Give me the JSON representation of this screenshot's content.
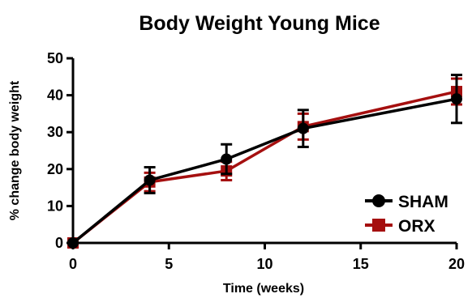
{
  "chart_data": {
    "type": "line",
    "title": "Body Weight Young Mice",
    "xlabel": "Time (weeks)",
    "ylabel": "% change body weight",
    "xlim": [
      0,
      20
    ],
    "ylim": [
      0,
      50
    ],
    "xticks": [
      0,
      5,
      10,
      15,
      20
    ],
    "yticks": [
      0,
      10,
      20,
      30,
      40,
      50
    ],
    "grid": false,
    "legend_position": "bottom-right",
    "x": [
      0,
      4,
      8,
      12,
      20
    ],
    "series": [
      {
        "name": "SHAM",
        "color": "#000000",
        "marker": "circle",
        "values": [
          0,
          17,
          22.7,
          31,
          39
        ],
        "error": [
          0,
          3.5,
          4,
          5,
          6.5
        ]
      },
      {
        "name": "ORX",
        "color": "#a50f0f",
        "marker": "square",
        "values": [
          0,
          16.5,
          19.5,
          31.5,
          41
        ],
        "error": [
          0,
          2.5,
          2.5,
          3.5,
          3.5
        ]
      }
    ]
  }
}
